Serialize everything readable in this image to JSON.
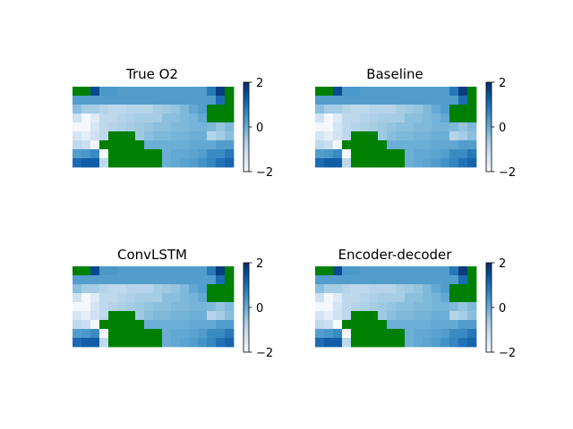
{
  "chart_data": [
    {
      "type": "heatmap",
      "title": "True O2",
      "grid": false,
      "colormap": "Blues",
      "mask_color": "#008000",
      "colorbar": {
        "range": [
          -2,
          2
        ],
        "ticks": [
          "2",
          "0",
          "−2"
        ]
      },
      "values": [
        [
          null,
          null,
          1.6,
          0.4,
          0.4,
          0.3,
          0.3,
          0.3,
          0.3,
          0.3,
          0.3,
          0.3,
          0.3,
          0.3,
          0.3,
          0.9,
          1.8,
          null
        ],
        [
          0.3,
          0.3,
          0.3,
          0.3,
          0.3,
          0.3,
          0.3,
          0.3,
          0.3,
          0.3,
          0.3,
          0.3,
          0.3,
          0.3,
          0.3,
          0.3,
          1.1,
          null
        ],
        [
          -0.3,
          -0.6,
          -0.6,
          -0.8,
          -0.9,
          -0.9,
          -0.8,
          -0.8,
          -0.8,
          -0.6,
          -0.5,
          -0.4,
          -0.2,
          0.1,
          0.3,
          null,
          null,
          null
        ],
        [
          -1.2,
          -1.9,
          -1.5,
          -0.9,
          -0.9,
          -0.8,
          -0.7,
          -0.6,
          -0.6,
          -0.6,
          -0.3,
          -0.3,
          -0.2,
          -0.1,
          0.1,
          null,
          null,
          null
        ],
        [
          -1.9,
          -1.9,
          -1.3,
          -0.9,
          -0.8,
          -0.7,
          -0.6,
          -0.5,
          -0.4,
          -0.3,
          -0.3,
          -0.2,
          -0.2,
          -0.1,
          -0.1,
          -0.2,
          -0.4,
          -0.2
        ],
        [
          -1.3,
          -1.6,
          -1.2,
          -0.9,
          null,
          null,
          null,
          -0.5,
          -0.3,
          -0.2,
          -0.2,
          -0.1,
          -0.1,
          0.0,
          0.0,
          -0.8,
          -0.6,
          -0.3
        ],
        [
          -0.9,
          -1.1,
          -1.9,
          null,
          null,
          null,
          null,
          null,
          0.0,
          0.0,
          0.0,
          0.0,
          0.0,
          0.1,
          0.1,
          0.1,
          0.3,
          0.3
        ],
        [
          0.3,
          0.4,
          0.6,
          -1.9,
          null,
          null,
          null,
          null,
          null,
          null,
          0.0,
          0.1,
          0.1,
          0.2,
          0.3,
          0.6,
          0.6,
          0.9
        ],
        [
          1.1,
          1.3,
          1.3,
          -0.9,
          null,
          null,
          null,
          null,
          null,
          null,
          0.0,
          0.1,
          0.2,
          0.3,
          0.5,
          0.7,
          1.0,
          1.2
        ]
      ]
    },
    {
      "type": "heatmap",
      "title": "Baseline",
      "grid": false,
      "colormap": "Blues",
      "mask_color": "#008000",
      "colorbar": {
        "range": [
          -2,
          2
        ],
        "ticks": [
          "2",
          "0",
          "−2"
        ]
      },
      "values": [
        [
          null,
          null,
          1.6,
          0.4,
          0.4,
          0.3,
          0.3,
          0.3,
          0.3,
          0.3,
          0.3,
          0.3,
          0.3,
          0.3,
          0.3,
          0.9,
          1.8,
          null
        ],
        [
          0.3,
          0.3,
          0.3,
          0.3,
          0.3,
          0.3,
          0.3,
          0.3,
          0.3,
          0.3,
          0.3,
          0.3,
          0.3,
          0.3,
          0.3,
          0.3,
          1.1,
          null
        ],
        [
          -0.3,
          -0.6,
          -0.6,
          -0.8,
          -0.9,
          -0.9,
          -0.8,
          -0.8,
          -0.8,
          -0.6,
          -0.5,
          -0.4,
          -0.2,
          0.1,
          0.3,
          null,
          null,
          null
        ],
        [
          -1.2,
          -1.9,
          -1.5,
          -0.9,
          -0.9,
          -0.8,
          -0.7,
          -0.6,
          -0.6,
          -0.6,
          -0.3,
          -0.3,
          -0.2,
          -0.1,
          0.1,
          null,
          null,
          null
        ],
        [
          -1.9,
          -1.9,
          -1.3,
          -0.9,
          -0.8,
          -0.7,
          -0.6,
          -0.5,
          -0.4,
          -0.3,
          -0.3,
          -0.2,
          -0.2,
          -0.1,
          -0.1,
          -0.2,
          -0.4,
          -0.2
        ],
        [
          -1.3,
          -1.6,
          -1.2,
          -0.9,
          null,
          null,
          null,
          -0.5,
          -0.3,
          -0.2,
          -0.2,
          -0.1,
          -0.1,
          0.0,
          0.0,
          -0.8,
          -0.6,
          -0.3
        ],
        [
          -0.9,
          -1.1,
          -1.9,
          null,
          null,
          null,
          null,
          null,
          0.0,
          0.0,
          0.0,
          0.0,
          0.0,
          0.1,
          0.1,
          0.1,
          0.3,
          0.3
        ],
        [
          0.3,
          0.4,
          0.6,
          -1.9,
          null,
          null,
          null,
          null,
          null,
          null,
          0.0,
          0.1,
          0.1,
          0.2,
          0.3,
          0.6,
          0.6,
          0.9
        ],
        [
          1.1,
          1.3,
          1.3,
          -0.9,
          null,
          null,
          null,
          null,
          null,
          null,
          0.0,
          0.1,
          0.2,
          0.3,
          0.5,
          0.7,
          1.0,
          1.2
        ]
      ]
    },
    {
      "type": "heatmap",
      "title": "ConvLSTM",
      "grid": false,
      "colormap": "Blues",
      "mask_color": "#008000",
      "colorbar": {
        "range": [
          -2,
          2
        ],
        "ticks": [
          "2",
          "0",
          "−2"
        ]
      },
      "values": [
        [
          null,
          null,
          1.6,
          0.4,
          0.4,
          0.3,
          0.3,
          0.3,
          0.3,
          0.3,
          0.3,
          0.3,
          0.3,
          0.3,
          0.3,
          0.9,
          1.8,
          null
        ],
        [
          0.3,
          0.3,
          0.3,
          0.3,
          0.3,
          0.3,
          0.3,
          0.3,
          0.3,
          0.3,
          0.3,
          0.3,
          0.3,
          0.3,
          0.3,
          0.3,
          1.1,
          null
        ],
        [
          -0.3,
          -0.6,
          -0.6,
          -0.8,
          -0.9,
          -0.9,
          -0.8,
          -0.8,
          -0.8,
          -0.6,
          -0.5,
          -0.4,
          -0.2,
          0.1,
          0.3,
          null,
          null,
          null
        ],
        [
          -1.2,
          -1.9,
          -1.5,
          -0.9,
          -0.9,
          -0.8,
          -0.7,
          -0.6,
          -0.6,
          -0.6,
          -0.3,
          -0.3,
          -0.2,
          -0.1,
          0.1,
          null,
          null,
          null
        ],
        [
          -1.9,
          -1.9,
          -1.3,
          -0.9,
          -0.8,
          -0.7,
          -0.6,
          -0.5,
          -0.4,
          -0.3,
          -0.3,
          -0.2,
          -0.2,
          -0.1,
          -0.1,
          -0.2,
          -0.4,
          -0.2
        ],
        [
          -1.3,
          -1.6,
          -1.2,
          -0.9,
          null,
          null,
          null,
          -0.5,
          -0.3,
          -0.2,
          -0.2,
          -0.1,
          -0.1,
          0.0,
          0.0,
          -0.8,
          -0.6,
          -0.3
        ],
        [
          -0.9,
          -1.1,
          -1.9,
          null,
          null,
          null,
          null,
          null,
          0.0,
          0.0,
          0.0,
          0.0,
          0.0,
          0.1,
          0.1,
          0.1,
          0.3,
          0.3
        ],
        [
          0.3,
          0.4,
          0.6,
          -1.9,
          null,
          null,
          null,
          null,
          null,
          null,
          0.0,
          0.1,
          0.1,
          0.2,
          0.3,
          0.6,
          0.6,
          0.9
        ],
        [
          1.1,
          1.3,
          1.3,
          -0.9,
          null,
          null,
          null,
          null,
          null,
          null,
          0.0,
          0.1,
          0.2,
          0.3,
          0.5,
          0.7,
          1.0,
          1.2
        ]
      ]
    },
    {
      "type": "heatmap",
      "title": "Encoder-decoder",
      "grid": false,
      "colormap": "Blues",
      "mask_color": "#008000",
      "colorbar": {
        "range": [
          -2,
          2
        ],
        "ticks": [
          "2",
          "0",
          "−2"
        ]
      },
      "values": [
        [
          null,
          null,
          1.6,
          0.4,
          0.4,
          0.3,
          0.3,
          0.3,
          0.3,
          0.3,
          0.3,
          0.3,
          0.3,
          0.3,
          0.3,
          0.9,
          1.8,
          null
        ],
        [
          0.3,
          0.3,
          0.3,
          0.3,
          0.3,
          0.3,
          0.3,
          0.3,
          0.3,
          0.3,
          0.3,
          0.3,
          0.3,
          0.3,
          0.3,
          0.3,
          1.1,
          null
        ],
        [
          -0.3,
          -0.6,
          -0.6,
          -0.8,
          -0.9,
          -0.9,
          -0.8,
          -0.8,
          -0.8,
          -0.6,
          -0.5,
          -0.4,
          -0.2,
          0.1,
          0.3,
          null,
          null,
          null
        ],
        [
          -1.2,
          -1.9,
          -1.5,
          -0.9,
          -0.9,
          -0.8,
          -0.7,
          -0.6,
          -0.6,
          -0.6,
          -0.3,
          -0.3,
          -0.2,
          -0.1,
          0.1,
          null,
          null,
          null
        ],
        [
          -1.9,
          -1.9,
          -1.3,
          -0.9,
          -0.8,
          -0.7,
          -0.6,
          -0.5,
          -0.4,
          -0.3,
          -0.3,
          -0.2,
          -0.2,
          -0.1,
          -0.1,
          -0.2,
          -0.4,
          -0.2
        ],
        [
          -1.3,
          -1.6,
          -1.2,
          -0.9,
          null,
          null,
          null,
          -0.5,
          -0.3,
          -0.2,
          -0.2,
          -0.1,
          -0.1,
          0.0,
          0.0,
          -0.8,
          -0.6,
          -0.3
        ],
        [
          -0.9,
          -1.1,
          -1.9,
          null,
          null,
          null,
          null,
          null,
          0.0,
          0.0,
          0.0,
          0.0,
          0.0,
          0.1,
          0.1,
          0.1,
          0.3,
          0.3
        ],
        [
          0.3,
          0.4,
          0.6,
          -1.9,
          null,
          null,
          null,
          null,
          null,
          null,
          0.0,
          0.1,
          0.1,
          0.2,
          0.3,
          0.6,
          0.6,
          0.9
        ],
        [
          1.1,
          1.3,
          1.3,
          -0.9,
          null,
          null,
          null,
          null,
          null,
          null,
          0.0,
          0.1,
          0.2,
          0.3,
          0.5,
          0.7,
          1.0,
          1.2
        ]
      ]
    }
  ]
}
